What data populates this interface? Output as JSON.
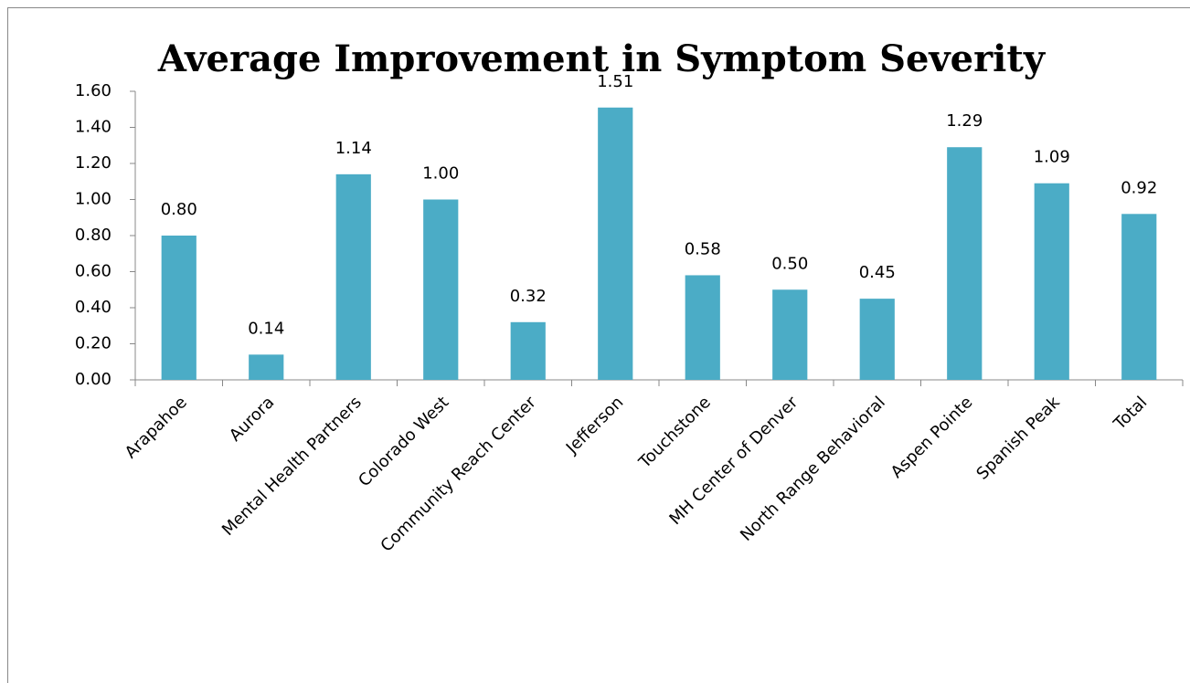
{
  "chart_data": {
    "type": "bar",
    "title": "Average Improvement in Symptom Severity",
    "categories": [
      "Arapahoe",
      "Aurora",
      "Mental Health Partners",
      "Colorado West",
      "Community Reach Center",
      "Jefferson",
      "Touchstone",
      "MH Center of Denver",
      "North Range Behavioral",
      "Aspen Pointe",
      "Spanish Peak",
      "Total"
    ],
    "values": [
      0.8,
      0.14,
      1.14,
      1,
      0.32,
      1.51,
      0.58,
      0.5,
      0.45,
      1.29,
      1.09,
      0.92
    ],
    "value_labels": [
      "0.80",
      "0.14",
      "1.14",
      "1.00",
      "0.32",
      "1.51",
      "0.58",
      "0.50",
      "0.45",
      "1.29",
      "1.09",
      "0.92"
    ],
    "color": "#4bacc6",
    "ylim": [
      0,
      1.6
    ],
    "yticks": [
      {
        "value": 0,
        "label": "0.00"
      },
      {
        "value": 0.2,
        "label": "0.20"
      },
      {
        "value": 0.4,
        "label": "0.40"
      },
      {
        "value": 0.6,
        "label": "0.60"
      },
      {
        "value": 0.8,
        "label": "0.80"
      },
      {
        "value": 1.0,
        "label": "1.00"
      },
      {
        "value": 1.2,
        "label": "1.20"
      },
      {
        "value": 1.4,
        "label": "1.40"
      },
      {
        "value": 1.6,
        "label": "1.60"
      }
    ],
    "grid": false
  }
}
